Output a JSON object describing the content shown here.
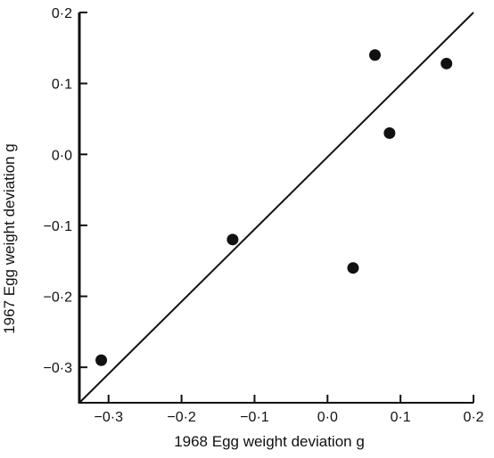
{
  "chart_data": {
    "type": "scatter",
    "title": "",
    "xlabel": "1968 Egg weight deviation g",
    "ylabel": "1967 Egg weight deviation g",
    "xlim": [
      -0.34,
      0.2
    ],
    "ylim": [
      -0.35,
      0.2
    ],
    "x_ticks": [
      -0.3,
      -0.2,
      -0.1,
      0.0,
      0.1,
      0.2
    ],
    "x_tick_labels": [
      "−0·3",
      "−0·2",
      "−0·1",
      "0·0",
      "0·1",
      "0·2"
    ],
    "y_ticks": [
      0.2,
      0.1,
      0.0,
      -0.1,
      -0.2,
      -0.3
    ],
    "y_tick_labels": [
      "0·2",
      "0·1",
      "0·0",
      "−0·1",
      "−0·2",
      "−0·3"
    ],
    "grid": false,
    "legend": "none",
    "points": [
      {
        "x": -0.31,
        "y": -0.29
      },
      {
        "x": -0.13,
        "y": -0.12
      },
      {
        "x": 0.035,
        "y": -0.16
      },
      {
        "x": 0.065,
        "y": 0.14
      },
      {
        "x": 0.085,
        "y": 0.03
      },
      {
        "x": 0.163,
        "y": 0.128
      }
    ],
    "reference_line": {
      "type": "line",
      "x1": -0.34,
      "y1": -0.35,
      "x2": 0.2,
      "y2": 0.2
    },
    "colors": {
      "ink": "#111111",
      "background": "#ffffff"
    }
  }
}
